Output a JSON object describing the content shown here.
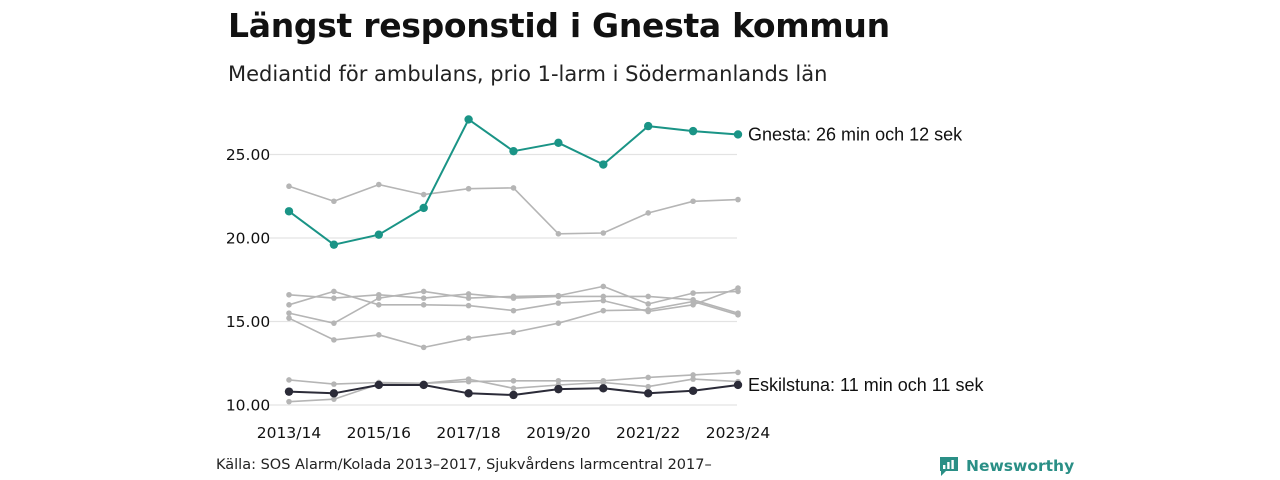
{
  "title": "Längst responstid i Gnesta kommun",
  "subtitle": "Mediantid för ambulans, prio 1-larm i Södermanlands län",
  "source": "Källa: SOS Alarm/Kolada 2013–2017, Sjukvårdens larmcentral 2017–",
  "brand": {
    "name": "Newsworthy",
    "icon": "newsworthy-logo-icon"
  },
  "colors": {
    "highlight": "#1a9486",
    "dark": "#2b2b38",
    "context": "#b5b5b5",
    "grid": "#e3e3e3"
  },
  "chart_data": {
    "type": "line",
    "x": [
      "2013/14",
      "2014/15",
      "2015/16",
      "2016/17",
      "2017/18",
      "2018/19",
      "2019/20",
      "2020/21",
      "2021/22",
      "2022/23",
      "2023/24"
    ],
    "x_tick_labels": [
      "2013/14",
      "2015/16",
      "2017/18",
      "2019/20",
      "2021/22",
      "2023/24"
    ],
    "y_ticks": [
      "10.00",
      "15.00",
      "20.00",
      "25.00"
    ],
    "ylim": [
      10,
      27.5
    ],
    "grid": "horizontal",
    "series": [
      {
        "name": "Gnesta",
        "role": "highlight",
        "values": [
          21.6,
          19.6,
          20.2,
          21.8,
          27.1,
          25.2,
          25.7,
          24.4,
          26.7,
          26.4,
          26.2
        ]
      },
      {
        "name": "Eskilstuna",
        "role": "dark",
        "values": [
          10.8,
          10.7,
          11.2,
          11.2,
          10.7,
          10.6,
          10.95,
          11.0,
          10.7,
          10.85,
          11.2
        ]
      },
      {
        "role": "context",
        "values": [
          23.1,
          22.2,
          23.2,
          22.6,
          22.95,
          23.0,
          20.25,
          20.3,
          21.5,
          22.2,
          22.3
        ]
      },
      {
        "role": "context",
        "values": [
          16.6,
          16.4,
          16.6,
          16.4,
          16.65,
          16.4,
          16.5,
          16.5,
          16.5,
          16.3,
          15.5
        ]
      },
      {
        "role": "context",
        "values": [
          15.5,
          14.9,
          16.4,
          16.8,
          16.4,
          16.5,
          16.55,
          17.1,
          16.05,
          16.7,
          16.8
        ]
      },
      {
        "role": "context",
        "values": [
          15.2,
          13.9,
          14.2,
          13.45,
          14.0,
          14.35,
          14.9,
          15.65,
          15.7,
          16.2,
          15.4
        ]
      },
      {
        "role": "context",
        "values": [
          16.0,
          16.8,
          16.0,
          16.0,
          15.95,
          15.65,
          16.1,
          16.25,
          15.6,
          16.0,
          17.0
        ]
      },
      {
        "role": "context",
        "values": [
          11.5,
          11.25,
          11.35,
          11.3,
          11.4,
          11.45,
          11.45,
          11.45,
          11.65,
          11.8,
          11.95
        ]
      },
      {
        "role": "context",
        "values": [
          10.2,
          10.35,
          11.25,
          11.3,
          11.55,
          11.0,
          11.2,
          11.35,
          11.1,
          11.55,
          11.4
        ]
      }
    ],
    "labels": [
      {
        "text": "Gnesta: 26 min och 12 sek"
      },
      {
        "text": "Eskilstuna: 11 min och 11 sek"
      }
    ]
  }
}
